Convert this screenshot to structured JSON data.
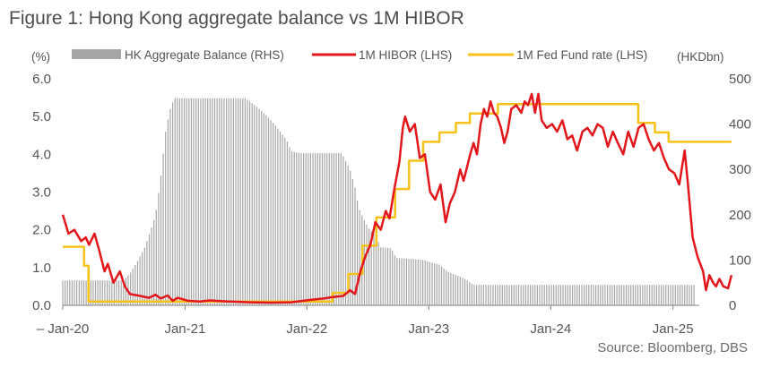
{
  "figure_title": "Figure 1:  Hong Kong aggregate balance vs 1M HIBOR",
  "source": "Source: Bloomberg, DBS",
  "chart_data": {
    "type": "bar+line",
    "left_unit": "(%)",
    "right_unit": "(HKDbn)",
    "y_left_lim": [
      0,
      6
    ],
    "y_left_ticks": [
      "0.0",
      "1.0",
      "2.0",
      "3.0",
      "4.0",
      "5.0",
      "6.0"
    ],
    "y_right_lim": [
      0,
      500
    ],
    "y_right_ticks": [
      "0",
      "100",
      "200",
      "300",
      "400",
      "500"
    ],
    "x_lim": [
      "2020-01-01",
      "2025-04-30"
    ],
    "x_ticks": [
      {
        "date": "2020-01-01",
        "label": "Jan-20"
      },
      {
        "date": "2021-01-01",
        "label": "Jan-21"
      },
      {
        "date": "2022-01-01",
        "label": "Jan-22"
      },
      {
        "date": "2023-01-01",
        "label": "Jan-23"
      },
      {
        "date": "2024-01-01",
        "label": "Jan-24"
      },
      {
        "date": "2025-01-01",
        "label": "Jan-25"
      }
    ],
    "grid": false,
    "legend_position": "top",
    "colors": {
      "balance": "#a6a6a6",
      "hibor": "#e3171b",
      "fed": "#f6c21a",
      "axis": "#808080",
      "text": "#555555"
    },
    "series": [
      {
        "name": "HK Aggregate Balance (RHS)",
        "axis": "right",
        "kind": "bar",
        "points": [
          [
            "2020-01-01",
            55
          ],
          [
            "2020-07-01",
            55
          ],
          [
            "2020-07-20",
            70
          ],
          [
            "2020-08-10",
            95
          ],
          [
            "2020-09-01",
            125
          ],
          [
            "2020-09-20",
            165
          ],
          [
            "2020-10-05",
            200
          ],
          [
            "2020-10-20",
            280
          ],
          [
            "2020-11-05",
            390
          ],
          [
            "2020-11-20",
            440
          ],
          [
            "2020-12-01",
            457
          ],
          [
            "2021-07-01",
            457
          ],
          [
            "2021-08-01",
            440
          ],
          [
            "2021-09-01",
            420
          ],
          [
            "2021-10-01",
            395
          ],
          [
            "2021-11-01",
            365
          ],
          [
            "2021-11-15",
            340
          ],
          [
            "2021-12-10",
            336
          ],
          [
            "2022-04-15",
            336
          ],
          [
            "2022-05-10",
            300
          ],
          [
            "2022-05-25",
            260
          ],
          [
            "2022-06-05",
            215
          ],
          [
            "2022-06-20",
            190
          ],
          [
            "2022-07-05",
            170
          ],
          [
            "2022-07-25",
            155
          ],
          [
            "2022-08-10",
            128
          ],
          [
            "2022-09-10",
            126
          ],
          [
            "2022-09-25",
            105
          ],
          [
            "2022-12-20",
            100
          ],
          [
            "2023-01-05",
            95
          ],
          [
            "2023-02-01",
            90
          ],
          [
            "2023-02-25",
            75
          ],
          [
            "2023-04-15",
            60
          ],
          [
            "2023-05-15",
            45
          ],
          [
            "2025-04-10",
            45
          ],
          [
            "2025-05-05",
            173
          ],
          [
            "2025-06-20",
            173
          ]
        ]
      },
      {
        "name": "1M HIBOR (LHS)",
        "axis": "left",
        "kind": "line",
        "points": [
          [
            "2020-01-01",
            2.4
          ],
          [
            "2020-01-08",
            2.2
          ],
          [
            "2020-01-18",
            1.9
          ],
          [
            "2020-02-05",
            2.0
          ],
          [
            "2020-02-25",
            1.7
          ],
          [
            "2020-03-10",
            1.8
          ],
          [
            "2020-03-20",
            1.6
          ],
          [
            "2020-04-05",
            1.9
          ],
          [
            "2020-04-18",
            1.5
          ],
          [
            "2020-05-05",
            0.9
          ],
          [
            "2020-05-15",
            1.1
          ],
          [
            "2020-06-01",
            0.6
          ],
          [
            "2020-06-20",
            0.9
          ],
          [
            "2020-07-05",
            0.5
          ],
          [
            "2020-07-20",
            0.3
          ],
          [
            "2020-08-20",
            0.25
          ],
          [
            "2020-09-15",
            0.2
          ],
          [
            "2020-10-05",
            0.28
          ],
          [
            "2020-10-20",
            0.18
          ],
          [
            "2020-11-10",
            0.26
          ],
          [
            "2020-11-25",
            0.12
          ],
          [
            "2020-12-10",
            0.2
          ],
          [
            "2021-01-10",
            0.12
          ],
          [
            "2021-02-15",
            0.1
          ],
          [
            "2021-03-15",
            0.13
          ],
          [
            "2021-05-15",
            0.1
          ],
          [
            "2021-07-15",
            0.08
          ],
          [
            "2021-09-15",
            0.07
          ],
          [
            "2021-11-15",
            0.08
          ],
          [
            "2022-01-15",
            0.15
          ],
          [
            "2022-02-20",
            0.18
          ],
          [
            "2022-03-20",
            0.22
          ],
          [
            "2022-04-20",
            0.25
          ],
          [
            "2022-05-10",
            0.4
          ],
          [
            "2022-05-25",
            0.3
          ],
          [
            "2022-06-10",
            0.9
          ],
          [
            "2022-06-25",
            1.3
          ],
          [
            "2022-07-10",
            1.6
          ],
          [
            "2022-07-25",
            2.2
          ],
          [
            "2022-08-10",
            2.0
          ],
          [
            "2022-08-25",
            2.5
          ],
          [
            "2022-09-05",
            2.3
          ],
          [
            "2022-09-20",
            3.1
          ],
          [
            "2022-10-05",
            3.8
          ],
          [
            "2022-10-15",
            4.7
          ],
          [
            "2022-10-22",
            5.0
          ],
          [
            "2022-11-05",
            4.6
          ],
          [
            "2022-11-20",
            4.8
          ],
          [
            "2022-12-05",
            3.9
          ],
          [
            "2022-12-20",
            4.0
          ],
          [
            "2023-01-05",
            3.0
          ],
          [
            "2023-01-20",
            2.8
          ],
          [
            "2023-02-05",
            3.2
          ],
          [
            "2023-02-20",
            2.2
          ],
          [
            "2023-03-05",
            2.7
          ],
          [
            "2023-03-20",
            3.0
          ],
          [
            "2023-04-05",
            3.6
          ],
          [
            "2023-04-15",
            3.3
          ],
          [
            "2023-05-05",
            4.0
          ],
          [
            "2023-05-15",
            4.3
          ],
          [
            "2023-05-25",
            4.0
          ],
          [
            "2023-06-05",
            4.8
          ],
          [
            "2023-06-15",
            5.2
          ],
          [
            "2023-06-25",
            5.0
          ],
          [
            "2023-07-05",
            5.4
          ],
          [
            "2023-07-15",
            5.1
          ],
          [
            "2023-07-25",
            5.0
          ],
          [
            "2023-08-05",
            4.7
          ],
          [
            "2023-08-15",
            4.3
          ],
          [
            "2023-08-25",
            4.6
          ],
          [
            "2023-09-05",
            5.2
          ],
          [
            "2023-09-20",
            5.3
          ],
          [
            "2023-10-05",
            5.1
          ],
          [
            "2023-10-15",
            5.4
          ],
          [
            "2023-10-25",
            5.3
          ],
          [
            "2023-11-05",
            5.6
          ],
          [
            "2023-11-15",
            5.1
          ],
          [
            "2023-11-25",
            5.6
          ],
          [
            "2023-12-05",
            4.9
          ],
          [
            "2023-12-20",
            4.7
          ],
          [
            "2024-01-05",
            4.8
          ],
          [
            "2024-01-20",
            4.6
          ],
          [
            "2024-02-05",
            4.9
          ],
          [
            "2024-02-20",
            4.4
          ],
          [
            "2024-03-05",
            4.5
          ],
          [
            "2024-03-20",
            4.1
          ],
          [
            "2024-04-05",
            4.6
          ],
          [
            "2024-04-20",
            4.7
          ],
          [
            "2024-05-05",
            4.5
          ],
          [
            "2024-05-20",
            4.8
          ],
          [
            "2024-06-05",
            4.7
          ],
          [
            "2024-06-20",
            4.2
          ],
          [
            "2024-07-05",
            4.6
          ],
          [
            "2024-07-20",
            4.3
          ],
          [
            "2024-08-05",
            4.0
          ],
          [
            "2024-08-20",
            4.6
          ],
          [
            "2024-09-05",
            4.2
          ],
          [
            "2024-09-20",
            4.7
          ],
          [
            "2024-10-05",
            4.8
          ],
          [
            "2024-10-20",
            4.4
          ],
          [
            "2024-11-05",
            4.1
          ],
          [
            "2024-11-20",
            4.3
          ],
          [
            "2024-12-05",
            3.9
          ],
          [
            "2024-12-20",
            3.6
          ],
          [
            "2025-01-05",
            3.5
          ],
          [
            "2025-01-20",
            3.2
          ],
          [
            "2025-02-05",
            4.1
          ],
          [
            "2025-02-15",
            3.2
          ],
          [
            "2025-03-01",
            1.8
          ],
          [
            "2025-03-15",
            1.3
          ],
          [
            "2025-04-01",
            0.9
          ],
          [
            "2025-04-10",
            0.4
          ],
          [
            "2025-04-20",
            0.8
          ],
          [
            "2025-05-01",
            0.6
          ],
          [
            "2025-05-10",
            0.5
          ],
          [
            "2025-05-20",
            0.7
          ],
          [
            "2025-06-01",
            0.5
          ],
          [
            "2025-06-15",
            0.45
          ],
          [
            "2025-06-25",
            0.8
          ]
        ]
      },
      {
        "name": "1M Fed Fund rate (LHS)",
        "axis": "left",
        "kind": "step",
        "points": [
          [
            "2020-01-01",
            1.55
          ],
          [
            "2020-03-05",
            1.05
          ],
          [
            "2020-03-18",
            0.1
          ],
          [
            "2022-03-18",
            0.33
          ],
          [
            "2022-05-05",
            0.83
          ],
          [
            "2022-06-16",
            1.58
          ],
          [
            "2022-07-28",
            2.33
          ],
          [
            "2022-09-22",
            3.08
          ],
          [
            "2022-11-03",
            3.83
          ],
          [
            "2022-12-15",
            4.33
          ],
          [
            "2023-02-02",
            4.58
          ],
          [
            "2023-03-23",
            4.83
          ],
          [
            "2023-05-04",
            5.08
          ],
          [
            "2023-07-27",
            5.33
          ],
          [
            "2024-09-19",
            4.83
          ],
          [
            "2024-11-08",
            4.58
          ],
          [
            "2024-12-19",
            4.33
          ],
          [
            "2025-06-25",
            4.33
          ]
        ]
      }
    ]
  }
}
